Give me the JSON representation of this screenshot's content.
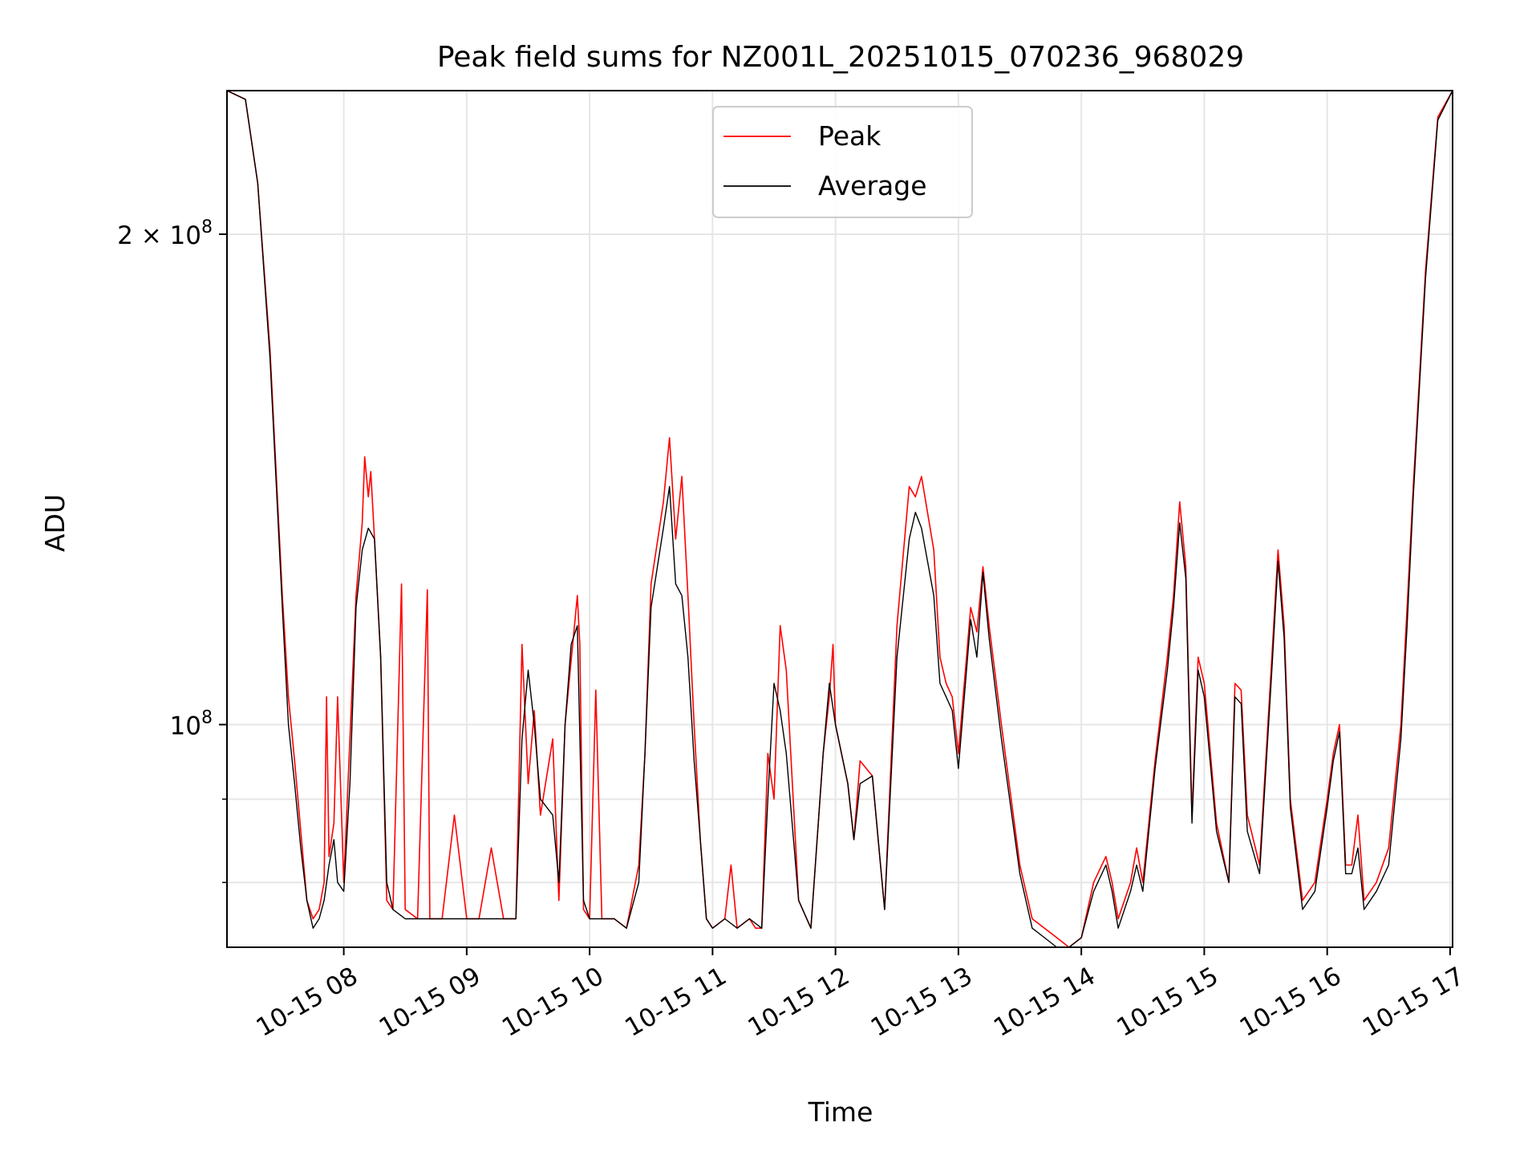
{
  "colors": {
    "peak": "#ff0000",
    "average": "#000000",
    "grid": "#e6e6e6",
    "axis": "#000000",
    "background": "#ffffff"
  },
  "chart_data": {
    "type": "line",
    "title": "Peak field sums for NZ001L_20251015_070236_968029",
    "xlabel": "Time",
    "ylabel": "ADU",
    "yscale": "log",
    "ylim": [
      73000000,
      245000000
    ],
    "xlim": [
      7.05,
      17.02
    ],
    "grid": true,
    "legend_position": "upper center",
    "x_ticks": [
      {
        "value": 8,
        "label": "10-15 08"
      },
      {
        "value": 9,
        "label": "10-15 09"
      },
      {
        "value": 10,
        "label": "10-15 10"
      },
      {
        "value": 11,
        "label": "10-15 11"
      },
      {
        "value": 12,
        "label": "10-15 12"
      },
      {
        "value": 13,
        "label": "10-15 13"
      },
      {
        "value": 14,
        "label": "10-15 14"
      },
      {
        "value": 15,
        "label": "10-15 15"
      },
      {
        "value": 16,
        "label": "10-15 16"
      },
      {
        "value": 17,
        "label": "10-15 17"
      }
    ],
    "y_ticks_major": [
      {
        "value": 200000000,
        "base": "2 × 10",
        "exp": "8"
      },
      {
        "value": 100000000,
        "base": "10",
        "exp": "8"
      }
    ],
    "y_ticks_minor": [
      80000000,
      90000000
    ],
    "series": [
      {
        "name": "Peak",
        "color": "#ff0000",
        "points": [
          [
            7.05,
            245
          ],
          [
            7.2,
            242
          ],
          [
            7.3,
            215
          ],
          [
            7.4,
            170
          ],
          [
            7.5,
            120
          ],
          [
            7.55,
            104
          ],
          [
            7.6,
            95
          ],
          [
            7.65,
            86
          ],
          [
            7.7,
            78
          ],
          [
            7.75,
            76
          ],
          [
            7.8,
            77
          ],
          [
            7.84,
            80
          ],
          [
            7.86,
            104
          ],
          [
            7.88,
            83
          ],
          [
            7.92,
            87
          ],
          [
            7.95,
            104
          ],
          [
            8.0,
            80
          ],
          [
            8.1,
            120
          ],
          [
            8.15,
            133
          ],
          [
            8.17,
            146
          ],
          [
            8.2,
            138
          ],
          [
            8.22,
            143
          ],
          [
            8.25,
            130
          ],
          [
            8.3,
            110
          ],
          [
            8.35,
            78
          ],
          [
            8.4,
            77
          ],
          [
            8.47,
            122
          ],
          [
            8.5,
            77
          ],
          [
            8.6,
            76
          ],
          [
            8.68,
            121
          ],
          [
            8.7,
            76
          ],
          [
            8.8,
            76
          ],
          [
            8.9,
            88
          ],
          [
            9.0,
            76
          ],
          [
            9.1,
            76
          ],
          [
            9.2,
            84
          ],
          [
            9.3,
            76
          ],
          [
            9.4,
            76
          ],
          [
            9.45,
            112
          ],
          [
            9.5,
            92
          ],
          [
            9.55,
            102
          ],
          [
            9.6,
            88
          ],
          [
            9.7,
            98
          ],
          [
            9.75,
            78
          ],
          [
            9.8,
            100
          ],
          [
            9.9,
            120
          ],
          [
            9.92,
            112
          ],
          [
            9.95,
            77
          ],
          [
            10.0,
            76
          ],
          [
            10.05,
            105
          ],
          [
            10.1,
            76
          ],
          [
            10.2,
            76
          ],
          [
            10.3,
            75
          ],
          [
            10.4,
            82
          ],
          [
            10.45,
            96
          ],
          [
            10.5,
            122
          ],
          [
            10.6,
            137
          ],
          [
            10.65,
            150
          ],
          [
            10.7,
            130
          ],
          [
            10.75,
            142
          ],
          [
            10.8,
            120
          ],
          [
            10.85,
            100
          ],
          [
            10.9,
            85
          ],
          [
            10.95,
            76
          ],
          [
            11.0,
            75
          ],
          [
            11.1,
            76
          ],
          [
            11.15,
            82
          ],
          [
            11.2,
            75
          ],
          [
            11.3,
            76
          ],
          [
            11.35,
            75
          ],
          [
            11.4,
            75
          ],
          [
            11.45,
            96
          ],
          [
            11.5,
            90
          ],
          [
            11.55,
            115
          ],
          [
            11.6,
            108
          ],
          [
            11.7,
            78
          ],
          [
            11.8,
            75
          ],
          [
            11.9,
            96
          ],
          [
            11.95,
            104
          ],
          [
            11.98,
            112
          ],
          [
            12.0,
            100
          ],
          [
            12.1,
            92
          ],
          [
            12.15,
            85
          ],
          [
            12.2,
            95
          ],
          [
            12.3,
            93
          ],
          [
            12.4,
            77
          ],
          [
            12.5,
            115
          ],
          [
            12.6,
            140
          ],
          [
            12.65,
            138
          ],
          [
            12.7,
            142
          ],
          [
            12.8,
            128
          ],
          [
            12.85,
            110
          ],
          [
            12.9,
            106
          ],
          [
            12.95,
            104
          ],
          [
            13.0,
            96
          ],
          [
            13.1,
            118
          ],
          [
            13.15,
            114
          ],
          [
            13.2,
            125
          ],
          [
            13.25,
            115
          ],
          [
            13.35,
            100
          ],
          [
            13.5,
            82
          ],
          [
            13.6,
            76
          ],
          [
            13.7,
            75
          ],
          [
            13.8,
            74
          ],
          [
            13.9,
            73
          ],
          [
            14.0,
            74
          ],
          [
            14.1,
            80
          ],
          [
            14.2,
            83
          ],
          [
            14.25,
            80
          ],
          [
            14.3,
            76
          ],
          [
            14.4,
            80
          ],
          [
            14.45,
            84
          ],
          [
            14.5,
            80
          ],
          [
            14.6,
            95
          ],
          [
            14.7,
            110
          ],
          [
            14.75,
            120
          ],
          [
            14.8,
            137
          ],
          [
            14.85,
            125
          ],
          [
            14.9,
            88
          ],
          [
            14.95,
            110
          ],
          [
            15.0,
            106
          ],
          [
            15.1,
            87
          ],
          [
            15.2,
            80
          ],
          [
            15.25,
            106
          ],
          [
            15.3,
            105
          ],
          [
            15.35,
            88
          ],
          [
            15.45,
            82
          ],
          [
            15.55,
            110
          ],
          [
            15.6,
            128
          ],
          [
            15.65,
            115
          ],
          [
            15.7,
            90
          ],
          [
            15.8,
            78
          ],
          [
            15.9,
            80
          ],
          [
            16.0,
            90
          ],
          [
            16.05,
            96
          ],
          [
            16.1,
            100
          ],
          [
            16.15,
            82
          ],
          [
            16.2,
            82
          ],
          [
            16.25,
            88
          ],
          [
            16.3,
            78
          ],
          [
            16.4,
            80
          ],
          [
            16.5,
            84
          ],
          [
            16.6,
            100
          ],
          [
            16.65,
            118
          ],
          [
            16.7,
            140
          ],
          [
            16.8,
            190
          ],
          [
            16.9,
            236
          ],
          [
            17.02,
            245
          ]
        ]
      },
      {
        "name": "Average",
        "color": "#000000",
        "points": [
          [
            7.05,
            245
          ],
          [
            7.2,
            242
          ],
          [
            7.3,
            215
          ],
          [
            7.4,
            168
          ],
          [
            7.5,
            118
          ],
          [
            7.55,
            100
          ],
          [
            7.6,
            92
          ],
          [
            7.65,
            84
          ],
          [
            7.7,
            78
          ],
          [
            7.75,
            75
          ],
          [
            7.8,
            76
          ],
          [
            7.84,
            78
          ],
          [
            7.88,
            82
          ],
          [
            7.92,
            85
          ],
          [
            7.95,
            80
          ],
          [
            8.0,
            79
          ],
          [
            8.05,
            92
          ],
          [
            8.1,
            118
          ],
          [
            8.15,
            128
          ],
          [
            8.2,
            132
          ],
          [
            8.25,
            130
          ],
          [
            8.3,
            110
          ],
          [
            8.35,
            80
          ],
          [
            8.4,
            77
          ],
          [
            8.5,
            76
          ],
          [
            8.6,
            76
          ],
          [
            8.8,
            76
          ],
          [
            9.0,
            76
          ],
          [
            9.2,
            76
          ],
          [
            9.4,
            76
          ],
          [
            9.45,
            98
          ],
          [
            9.5,
            108
          ],
          [
            9.55,
            100
          ],
          [
            9.6,
            90
          ],
          [
            9.7,
            88
          ],
          [
            9.75,
            80
          ],
          [
            9.8,
            100
          ],
          [
            9.85,
            112
          ],
          [
            9.9,
            115
          ],
          [
            9.95,
            78
          ],
          [
            10.0,
            76
          ],
          [
            10.1,
            76
          ],
          [
            10.2,
            76
          ],
          [
            10.3,
            75
          ],
          [
            10.4,
            80
          ],
          [
            10.45,
            96
          ],
          [
            10.5,
            118
          ],
          [
            10.6,
            132
          ],
          [
            10.65,
            140
          ],
          [
            10.7,
            122
          ],
          [
            10.75,
            120
          ],
          [
            10.8,
            110
          ],
          [
            10.85,
            95
          ],
          [
            10.9,
            85
          ],
          [
            10.95,
            76
          ],
          [
            11.0,
            75
          ],
          [
            11.1,
            76
          ],
          [
            11.2,
            75
          ],
          [
            11.3,
            76
          ],
          [
            11.4,
            75
          ],
          [
            11.45,
            90
          ],
          [
            11.5,
            106
          ],
          [
            11.55,
            102
          ],
          [
            11.6,
            96
          ],
          [
            11.7,
            78
          ],
          [
            11.8,
            75
          ],
          [
            11.9,
            96
          ],
          [
            11.95,
            106
          ],
          [
            12.0,
            100
          ],
          [
            12.1,
            92
          ],
          [
            12.15,
            85
          ],
          [
            12.2,
            92
          ],
          [
            12.3,
            93
          ],
          [
            12.4,
            77
          ],
          [
            12.5,
            110
          ],
          [
            12.6,
            130
          ],
          [
            12.65,
            135
          ],
          [
            12.7,
            132
          ],
          [
            12.8,
            120
          ],
          [
            12.85,
            106
          ],
          [
            12.9,
            104
          ],
          [
            12.95,
            102
          ],
          [
            13.0,
            94
          ],
          [
            13.1,
            116
          ],
          [
            13.15,
            110
          ],
          [
            13.2,
            124
          ],
          [
            13.25,
            113
          ],
          [
            13.35,
            98
          ],
          [
            13.5,
            81
          ],
          [
            13.6,
            75
          ],
          [
            13.7,
            74
          ],
          [
            13.8,
            73
          ],
          [
            13.9,
            73
          ],
          [
            14.0,
            74
          ],
          [
            14.1,
            79
          ],
          [
            14.2,
            82
          ],
          [
            14.25,
            79
          ],
          [
            14.3,
            75
          ],
          [
            14.4,
            79
          ],
          [
            14.45,
            82
          ],
          [
            14.5,
            79
          ],
          [
            14.6,
            94
          ],
          [
            14.7,
            108
          ],
          [
            14.75,
            118
          ],
          [
            14.8,
            133
          ],
          [
            14.85,
            123
          ],
          [
            14.9,
            87
          ],
          [
            14.95,
            108
          ],
          [
            15.0,
            104
          ],
          [
            15.1,
            86
          ],
          [
            15.2,
            80
          ],
          [
            15.25,
            104
          ],
          [
            15.3,
            103
          ],
          [
            15.35,
            86
          ],
          [
            15.45,
            81
          ],
          [
            15.55,
            108
          ],
          [
            15.6,
            126
          ],
          [
            15.65,
            113
          ],
          [
            15.7,
            89
          ],
          [
            15.8,
            77
          ],
          [
            15.9,
            79
          ],
          [
            16.0,
            89
          ],
          [
            16.05,
            95
          ],
          [
            16.1,
            99
          ],
          [
            16.15,
            81
          ],
          [
            16.2,
            81
          ],
          [
            16.25,
            84
          ],
          [
            16.3,
            77
          ],
          [
            16.4,
            79
          ],
          [
            16.5,
            82
          ],
          [
            16.6,
            98
          ],
          [
            16.65,
            115
          ],
          [
            16.7,
            138
          ],
          [
            16.8,
            188
          ],
          [
            16.9,
            235
          ],
          [
            17.02,
            245
          ]
        ]
      }
    ]
  }
}
